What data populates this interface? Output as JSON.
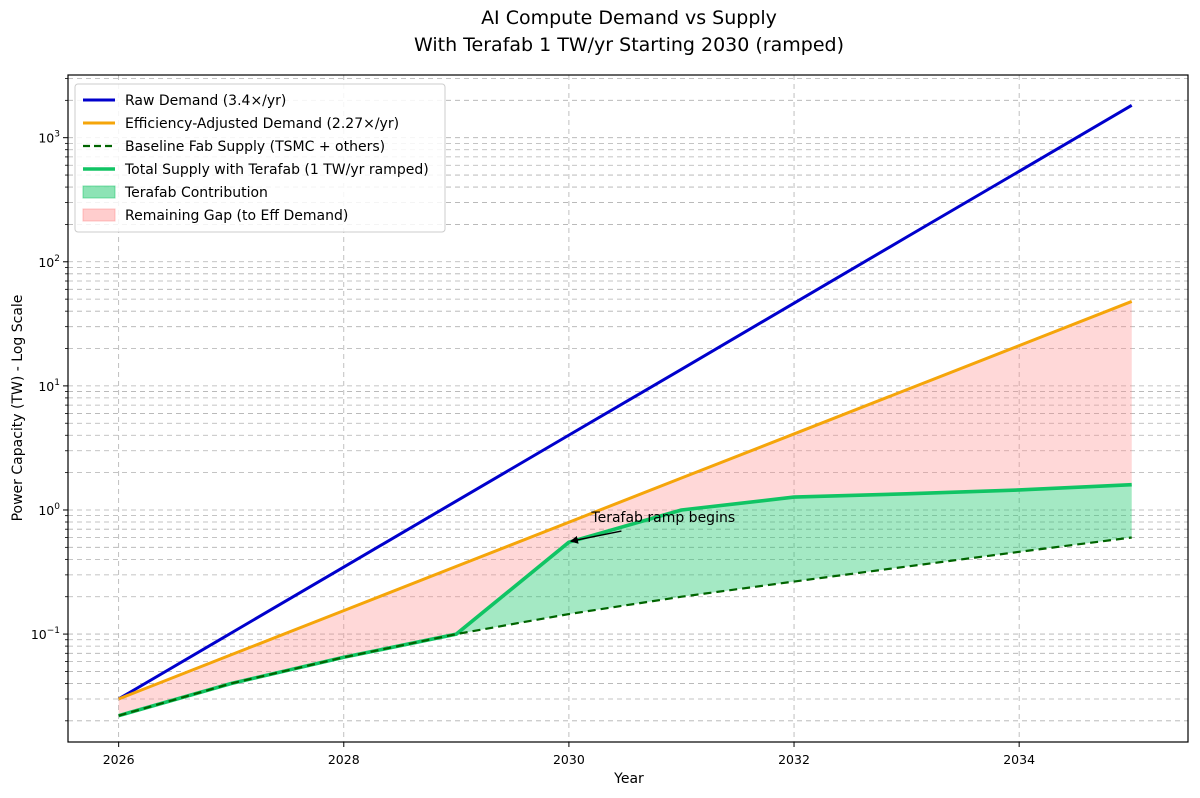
{
  "chart_data": {
    "type": "line",
    "title": "AI Compute Demand vs Supply",
    "subtitle": "With Terafab 1 TW/yr Starting 2030 (ramped)",
    "xlabel": "Year",
    "ylabel": "Power Capacity (TW) - Log Scale",
    "yscale": "log",
    "xlim": [
      2025.55,
      2035.5
    ],
    "ylim": [
      0.0135,
      3200
    ],
    "grid": true,
    "legend_position": "top-left",
    "x_ticks": [
      2026,
      2028,
      2030,
      2032,
      2034
    ],
    "x_tick_labels": [
      "2026",
      "2028",
      "2030",
      "2032",
      "2034"
    ],
    "y_major_ticks": [
      0.1,
      1,
      10,
      100,
      1000
    ],
    "y_tick_labels": [
      {
        "base": "10",
        "exp": "−1"
      },
      {
        "base": "10",
        "exp": "0"
      },
      {
        "base": "10",
        "exp": "1"
      },
      {
        "base": "10",
        "exp": "2"
      },
      {
        "base": "10",
        "exp": "3"
      }
    ],
    "x": [
      2026,
      2027,
      2028,
      2029,
      2030,
      2031,
      2032,
      2033,
      2034,
      2035
    ],
    "series": [
      {
        "name": "Raw Demand (3.4×/yr)",
        "color": "#0000cc",
        "style": "solid",
        "values": [
          0.03,
          0.102,
          0.347,
          1.18,
          4.01,
          13.6,
          46.4,
          158,
          536,
          1823
        ]
      },
      {
        "name": "Efficiency-Adjusted Demand (2.27×/yr)",
        "color": "#f5a50a",
        "style": "solid",
        "values": [
          0.03,
          0.0681,
          0.1546,
          0.351,
          0.797,
          1.81,
          4.1,
          9.3,
          21.1,
          47.9
        ]
      },
      {
        "name": "Baseline Fab Supply (TSMC + others)",
        "color": "#006400",
        "style": "dashed",
        "values": [
          0.022,
          0.04,
          0.065,
          0.1,
          0.145,
          0.2,
          0.265,
          0.35,
          0.46,
          0.6
        ]
      },
      {
        "name": "Total Supply with Terafab (1 TW/yr ramped)",
        "color": "#10c464",
        "style": "solid",
        "values": [
          0.022,
          0.04,
          0.065,
          0.1,
          0.55,
          1.0,
          1.27,
          1.35,
          1.45,
          1.6
        ]
      }
    ],
    "fills": [
      {
        "name": "Terafab Contribution",
        "color": "#10c464",
        "opacity": 0.38
      },
      {
        "name": "Remaining Gap (to Eff Demand)",
        "color": "#ff8a8a",
        "opacity": 0.33
      }
    ],
    "annotation": {
      "text": "Terafab ramp begins",
      "point": [
        2030,
        0.55
      ],
      "text_pos": [
        2030.2,
        0.8
      ]
    }
  }
}
